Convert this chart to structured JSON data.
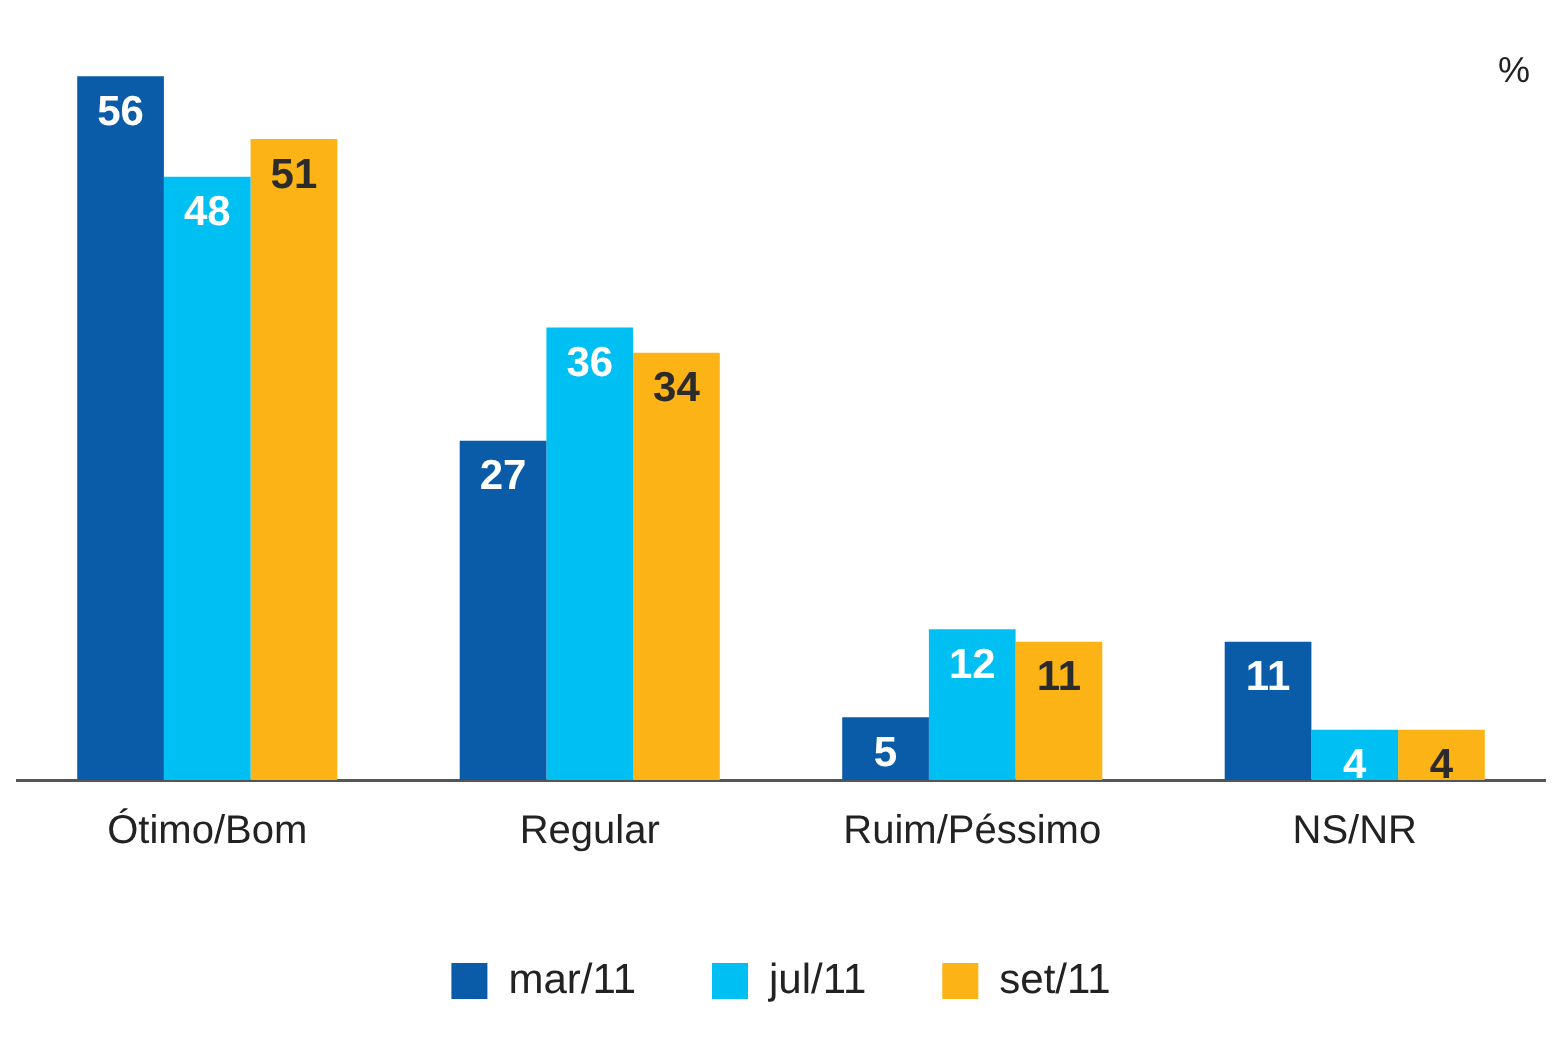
{
  "chart_data": {
    "type": "bar",
    "categories": [
      "Ótimo/Bom",
      "Regular",
      "Ruim/Péssimo",
      "NS/NR"
    ],
    "series": [
      {
        "name": "mar/11",
        "color": "#0a5ca8",
        "values": [
          56,
          27,
          5,
          11
        ]
      },
      {
        "name": "jul/11",
        "color": "#00bff3",
        "values": [
          48,
          36,
          12,
          4
        ]
      },
      {
        "name": "set/11",
        "color": "#fbb315",
        "values": [
          51,
          34,
          11,
          4
        ]
      }
    ],
    "data_labels": true,
    "legend": "bottom",
    "grid": false,
    "annotations": [
      "%"
    ]
  }
}
